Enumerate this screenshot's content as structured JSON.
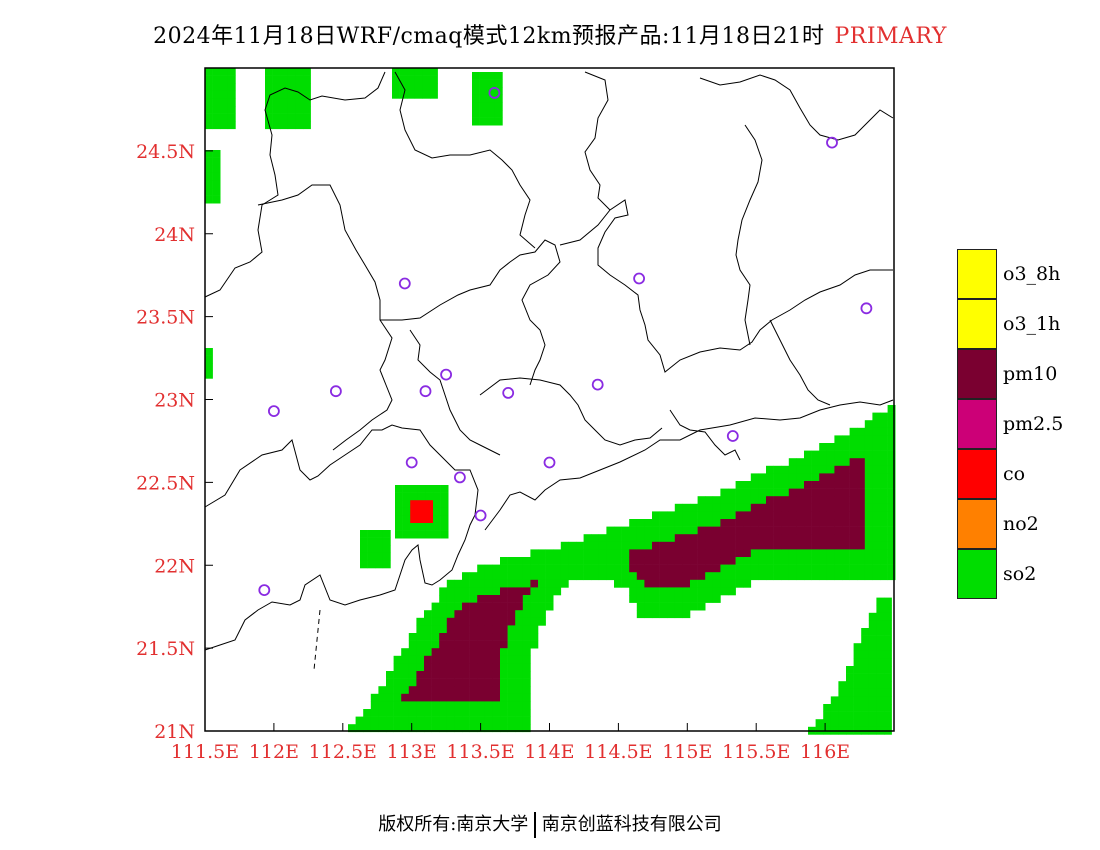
{
  "title": {
    "main": "2024年11月18日WRF/cmaq模式12km预报产品:11月18日21时",
    "tag": "PRIMARY"
  },
  "colors": {
    "axis_label": "#e23030",
    "o3_8h": "#ffff00",
    "o3_1h": "#ffff00",
    "pm10": "#7a0030",
    "pm25": "#cc0077",
    "co": "#ff0000",
    "no2": "#ff8000",
    "so2": "#00dd00",
    "station": "#8a2be2",
    "boundary": "#000000"
  },
  "axes": {
    "x_ticks": [
      "111.5E",
      "112E",
      "112.5E",
      "113E",
      "113.5E",
      "114E",
      "114.5E",
      "115E",
      "115.5E",
      "116E"
    ],
    "y_ticks": [
      "21N",
      "21.5N",
      "22N",
      "22.5N",
      "23N",
      "23.5N",
      "24N",
      "24.5N"
    ],
    "lon_range": [
      111.5,
      116.5
    ],
    "lat_range": [
      21,
      25
    ]
  },
  "legend": [
    {
      "label": "o3_8h",
      "color": "#ffff00"
    },
    {
      "label": "o3_1h",
      "color": "#ffff00"
    },
    {
      "label": "pm10",
      "color": "#7a0030"
    },
    {
      "label": "pm2.5",
      "color": "#cc0077"
    },
    {
      "label": "co",
      "color": "#ff0000"
    },
    {
      "label": "no2",
      "color": "#ff8000"
    },
    {
      "label": "so2",
      "color": "#00dd00"
    }
  ],
  "stations": [
    {
      "lon": 113.6,
      "lat": 24.85
    },
    {
      "lon": 116.05,
      "lat": 24.55
    },
    {
      "lon": 112.95,
      "lat": 23.7
    },
    {
      "lon": 114.65,
      "lat": 23.73
    },
    {
      "lon": 116.3,
      "lat": 23.55
    },
    {
      "lon": 113.25,
      "lat": 23.15
    },
    {
      "lon": 112.45,
      "lat": 23.05
    },
    {
      "lon": 113.1,
      "lat": 23.05
    },
    {
      "lon": 113.7,
      "lat": 23.04
    },
    {
      "lon": 114.35,
      "lat": 23.09
    },
    {
      "lon": 112.0,
      "lat": 22.93
    },
    {
      "lon": 115.33,
      "lat": 22.78
    },
    {
      "lon": 113.0,
      "lat": 22.62
    },
    {
      "lon": 114.0,
      "lat": 22.62
    },
    {
      "lon": 113.35,
      "lat": 22.53
    },
    {
      "lon": 113.5,
      "lat": 22.3
    },
    {
      "lon": 111.93,
      "lat": 21.85
    }
  ],
  "footer": {
    "left": "版权所有:南京大学",
    "right": "南京创蓝科技有限公司"
  }
}
